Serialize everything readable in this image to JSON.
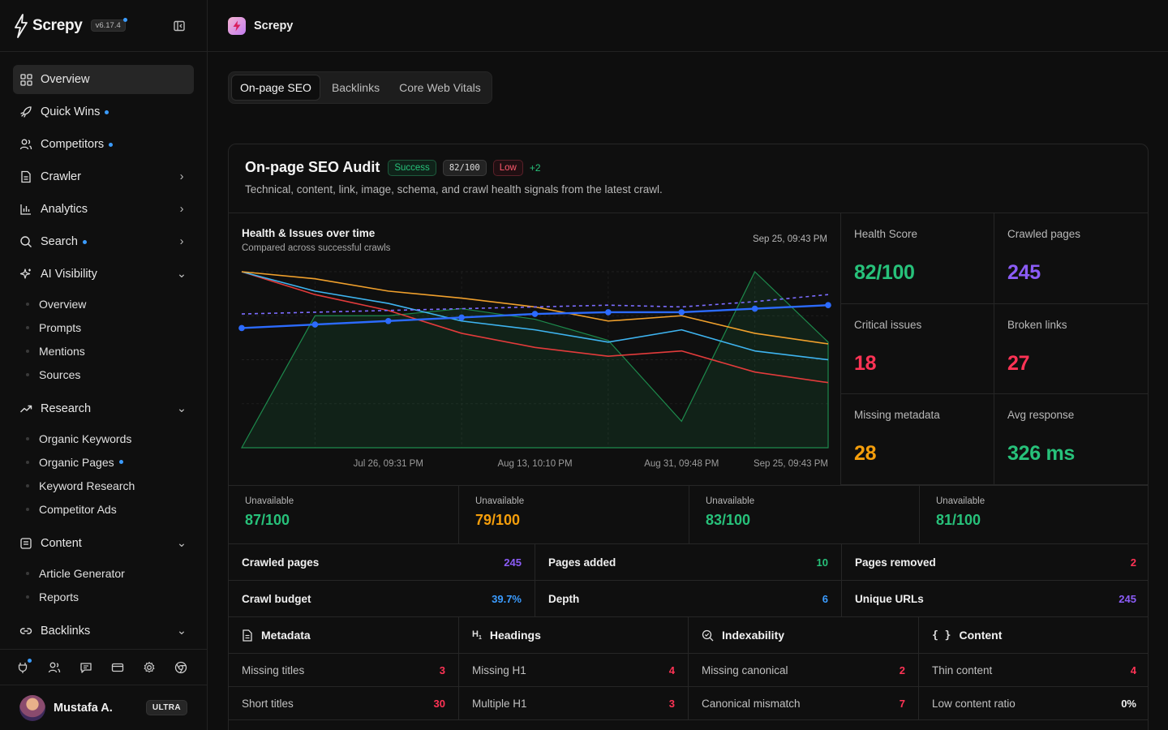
{
  "app": {
    "name": "Screpy",
    "version": "v6.17.4"
  },
  "sidebar": {
    "items": [
      {
        "label": "Overview",
        "icon": "grid-icon",
        "active": true
      },
      {
        "label": "Quick Wins",
        "icon": "rocket-icon",
        "dot": true
      },
      {
        "label": "Competitors",
        "icon": "users-icon",
        "dot": true
      },
      {
        "label": "Crawler",
        "icon": "document-icon",
        "chevron": "right"
      },
      {
        "label": "Analytics",
        "icon": "bar-chart-icon",
        "chevron": "right"
      },
      {
        "label": "Search",
        "icon": "search-icon",
        "dot": true,
        "chevron": "right"
      },
      {
        "label": "AI Visibility",
        "icon": "sparkles-icon",
        "chevron": "down"
      },
      {
        "label": "Research",
        "icon": "trend-icon",
        "chevron": "down"
      },
      {
        "label": "Content",
        "icon": "content-icon",
        "chevron": "down"
      },
      {
        "label": "Backlinks",
        "icon": "link-icon",
        "chevron": "down"
      }
    ],
    "ai_visibility_sub": [
      "Overview",
      "Prompts",
      "Mentions",
      "Sources"
    ],
    "research_sub": [
      "Organic Keywords",
      "Organic Pages",
      "Keyword Research",
      "Competitor Ads"
    ],
    "content_sub": [
      "Article Generator",
      "Reports"
    ],
    "tools": [
      "plug-icon",
      "team-icon",
      "chat-icon",
      "card-icon",
      "settings-icon",
      "chrome-icon"
    ],
    "user": {
      "name": "Mustafa A.",
      "plan": "ULTRA"
    }
  },
  "topbar": {
    "title": "Screpy"
  },
  "tabs": [
    "On-page SEO",
    "Backlinks",
    "Core Web Vitals"
  ],
  "audit": {
    "title": "On-page SEO Audit",
    "status": "Success",
    "score": "82/100",
    "severity": "Low",
    "delta": "+2",
    "description": "Technical, content, link, image, schema, and crawl health signals from the latest crawl."
  },
  "chart": {
    "title": "Health & Issues over time",
    "subtitle": "Compared across successful crawls",
    "latest_date": "Sep 25, 09:43 PM",
    "x_ticks": [
      "Jul 26, 09:31 PM",
      "Aug 13, 10:10 PM",
      "Aug 31, 09:48 PM",
      "Sep 25, 09:43 PM"
    ]
  },
  "chart_data": {
    "type": "line",
    "title": "Health & Issues over time",
    "x_ticks": [
      "Jul 26, 09:31 PM",
      "Aug 13, 10:10 PM",
      "Aug 31, 09:48 PM",
      "Sep 25, 09:43 PM"
    ],
    "points": 9,
    "ylim": [
      0,
      100
    ],
    "series": [
      {
        "color": "#2c6bff",
        "style": "solid",
        "markers": true,
        "values": [
          68,
          70,
          72,
          74,
          76,
          77,
          77,
          79,
          81
        ]
      },
      {
        "color": "#7b6cff",
        "style": "dashed",
        "values": [
          76,
          77,
          78,
          79,
          80,
          81,
          80,
          83,
          87
        ]
      },
      {
        "color": "#f0a02c",
        "style": "solid",
        "values": [
          100,
          96,
          89,
          85,
          80,
          72,
          75,
          65,
          59
        ]
      },
      {
        "color": "#3eb4f0",
        "style": "solid",
        "values": [
          100,
          89,
          82,
          72,
          67,
          60,
          67,
          55,
          50
        ]
      },
      {
        "color": "#e23b3b",
        "style": "solid",
        "values": [
          100,
          87,
          78,
          65,
          57,
          52,
          55,
          43,
          37
        ]
      },
      {
        "color": "#1d8a4c",
        "style": "area",
        "values": [
          0,
          75,
          75,
          79,
          73,
          61,
          15,
          100,
          60
        ]
      }
    ],
    "grid": true
  },
  "stats": [
    {
      "label": "Health Score",
      "value": "82/100",
      "color": "#27c17a"
    },
    {
      "label": "Crawled pages",
      "value": "245",
      "color": "#8b5cf6"
    },
    {
      "label": "Critical issues",
      "value": "18",
      "color": "#ff3355"
    },
    {
      "label": "Broken links",
      "value": "27",
      "color": "#ff3355"
    },
    {
      "label": "Missing metadata",
      "value": "28",
      "color": "#f59e0b"
    },
    {
      "label": "Avg response",
      "value": "326 ms",
      "color": "#27c17a"
    }
  ],
  "scores": [
    {
      "label": "Unavailable",
      "value": "87/100",
      "color": "#27c17a"
    },
    {
      "label": "Unavailable",
      "value": "79/100",
      "color": "#f59e0b"
    },
    {
      "label": "Unavailable",
      "value": "83/100",
      "color": "#27c17a"
    },
    {
      "label": "Unavailable",
      "value": "81/100",
      "color": "#27c17a"
    }
  ],
  "kv": [
    {
      "label": "Crawled pages",
      "value": "245",
      "color": "#8b5cf6"
    },
    {
      "label": "Pages added",
      "value": "10",
      "color": "#27c17a"
    },
    {
      "label": "Pages removed",
      "value": "2",
      "color": "#ff3355"
    },
    {
      "label": "Crawl budget",
      "value": "39.7%",
      "color": "#3b9cff"
    },
    {
      "label": "Depth",
      "value": "6",
      "color": "#3b9cff"
    },
    {
      "label": "Unique URLs",
      "value": "245",
      "color": "#8b5cf6"
    }
  ],
  "checks": [
    {
      "title": "Metadata",
      "icon": "file-icon",
      "rows": [
        {
          "label": "Missing titles",
          "value": "3",
          "color": "#ff3355"
        },
        {
          "label": "Short titles",
          "value": "30",
          "color": "#ff3355"
        }
      ]
    },
    {
      "title": "Headings",
      "icon": "heading-icon",
      "rows": [
        {
          "label": "Missing H1",
          "value": "4",
          "color": "#ff3355"
        },
        {
          "label": "Multiple H1",
          "value": "3",
          "color": "#ff3355"
        }
      ]
    },
    {
      "title": "Indexability",
      "icon": "search-check-icon",
      "rows": [
        {
          "label": "Missing canonical",
          "value": "2",
          "color": "#ff3355"
        },
        {
          "label": "Canonical mismatch",
          "value": "7",
          "color": "#ff3355"
        }
      ]
    },
    {
      "title": "Content",
      "icon": "braces-icon",
      "rows": [
        {
          "label": "Thin content",
          "value": "4",
          "color": "#ff3355"
        },
        {
          "label": "Low content ratio",
          "value": "0%",
          "color": "#f0f0f0"
        }
      ]
    }
  ]
}
